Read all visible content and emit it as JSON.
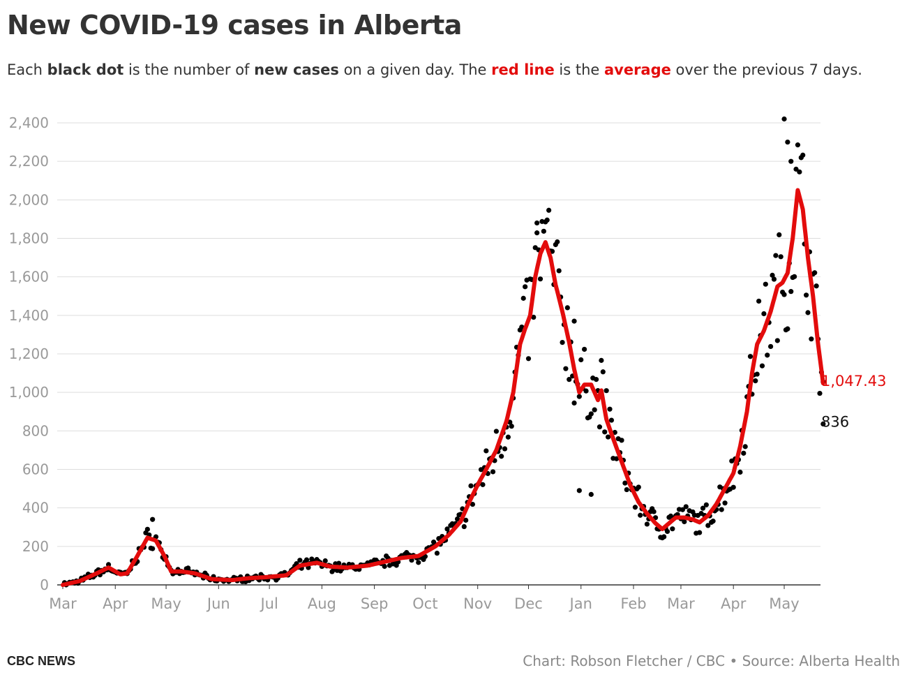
{
  "header": {
    "title": "New COVID-19 cases in Alberta",
    "subtitle_parts": {
      "p1": "Each ",
      "p2": "black dot",
      "p3": " is the number of ",
      "p4": "new cases",
      "p5": " on a given day. The ",
      "p6": "red line",
      "p7": " is the ",
      "p8": "average",
      "p9": " over the previous 7 days."
    }
  },
  "footer": {
    "brand": "CBC NEWS",
    "credit": "Chart: Robson Fletcher / CBC • Source: Alberta Health"
  },
  "colors": {
    "average_line": "#e30c0c",
    "dots": "#000000",
    "grid": "#dddddd",
    "axis": "#333333"
  },
  "chart_data": {
    "type": "scatter",
    "title": "New COVID-19 cases in Alberta",
    "xlabel": "",
    "ylabel": "",
    "ylim": [
      0,
      2400
    ],
    "y_ticks": [
      "0",
      "200",
      "400",
      "600",
      "800",
      "1,000",
      "1,200",
      "1,400",
      "1,600",
      "1,800",
      "2,000",
      "2,200",
      "2,400"
    ],
    "y_tick_values": [
      0,
      200,
      400,
      600,
      800,
      1000,
      1200,
      1400,
      1600,
      1800,
      2000,
      2200,
      2400
    ],
    "x_ticks": [
      "Mar",
      "Apr",
      "May",
      "Jun",
      "Jul",
      "Aug",
      "Sep",
      "Oct",
      "Nov",
      "Dec",
      "Jan",
      "Feb",
      "Mar",
      "Apr",
      "May"
    ],
    "x_tick_days": [
      0,
      31,
      61,
      92,
      122,
      153,
      184,
      214,
      245,
      275,
      306,
      337,
      365,
      396,
      426
    ],
    "xlim_days": [
      0,
      443
    ],
    "average_anchors": [
      [
        0,
        0
      ],
      [
        10,
        20
      ],
      [
        20,
        60
      ],
      [
        27,
        90
      ],
      [
        34,
        55
      ],
      [
        38,
        60
      ],
      [
        44,
        150
      ],
      [
        50,
        245
      ],
      [
        55,
        230
      ],
      [
        60,
        150
      ],
      [
        64,
        70
      ],
      [
        70,
        70
      ],
      [
        78,
        60
      ],
      [
        88,
        30
      ],
      [
        100,
        25
      ],
      [
        110,
        35
      ],
      [
        120,
        40
      ],
      [
        132,
        50
      ],
      [
        140,
        100
      ],
      [
        150,
        115
      ],
      [
        158,
        95
      ],
      [
        168,
        90
      ],
      [
        180,
        100
      ],
      [
        190,
        120
      ],
      [
        200,
        140
      ],
      [
        210,
        150
      ],
      [
        220,
        200
      ],
      [
        228,
        260
      ],
      [
        235,
        330
      ],
      [
        240,
        430
      ],
      [
        245,
        520
      ],
      [
        250,
        600
      ],
      [
        256,
        700
      ],
      [
        262,
        850
      ],
      [
        266,
        1000
      ],
      [
        270,
        1250
      ],
      [
        273,
        1330
      ],
      [
        276,
        1400
      ],
      [
        279,
        1600
      ],
      [
        282,
        1720
      ],
      [
        285,
        1780
      ],
      [
        288,
        1700
      ],
      [
        291,
        1560
      ],
      [
        295,
        1420
      ],
      [
        299,
        1260
      ],
      [
        302,
        1120
      ],
      [
        305,
        1000
      ],
      [
        308,
        1040
      ],
      [
        312,
        1040
      ],
      [
        316,
        960
      ],
      [
        318,
        1010
      ],
      [
        321,
        860
      ],
      [
        325,
        760
      ],
      [
        330,
        640
      ],
      [
        335,
        520
      ],
      [
        340,
        430
      ],
      [
        345,
        370
      ],
      [
        350,
        320
      ],
      [
        354,
        290
      ],
      [
        358,
        320
      ],
      [
        362,
        350
      ],
      [
        367,
        350
      ],
      [
        372,
        340
      ],
      [
        376,
        325
      ],
      [
        381,
        360
      ],
      [
        386,
        420
      ],
      [
        391,
        500
      ],
      [
        396,
        580
      ],
      [
        400,
        720
      ],
      [
        404,
        900
      ],
      [
        407,
        1100
      ],
      [
        410,
        1250
      ],
      [
        414,
        1320
      ],
      [
        418,
        1420
      ],
      [
        422,
        1550
      ],
      [
        425,
        1570
      ],
      [
        428,
        1620
      ],
      [
        431,
        1800
      ],
      [
        434,
        2050
      ],
      [
        437,
        1950
      ],
      [
        440,
        1700
      ],
      [
        443,
        1500
      ],
      [
        446,
        1250
      ],
      [
        449,
        1047.43
      ]
    ],
    "scatter_spread": {
      "jitter_fraction": 0.18,
      "seed": 7
    },
    "notable_points": [
      {
        "day": 53,
        "value": 340
      },
      {
        "day": 280,
        "value": 1880
      },
      {
        "day": 302,
        "value": 1370
      },
      {
        "day": 305,
        "value": 490
      },
      {
        "day": 312,
        "value": 470
      },
      {
        "day": 426,
        "value": 2420
      },
      {
        "day": 428,
        "value": 2300
      },
      {
        "day": 430,
        "value": 2200
      }
    ],
    "last_average": 1047.43,
    "last_average_label": "1,047.43",
    "last_cases": 836,
    "last_cases_label": "836"
  }
}
